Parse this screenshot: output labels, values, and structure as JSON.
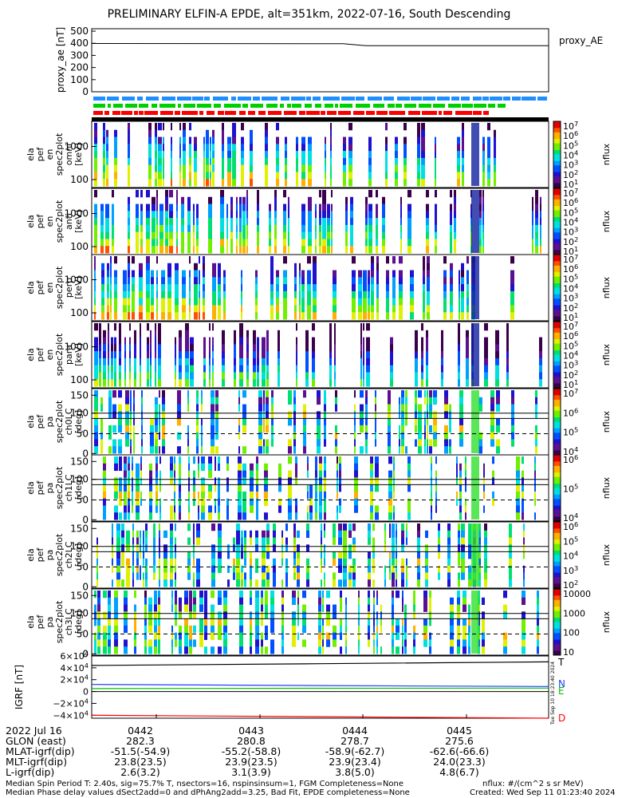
{
  "title": "PRELIMINARY ELFIN-A EPDE, alt=351km, 2022-07-16, South Descending",
  "colors": {
    "bar_blue": "#1f8fff",
    "bar_green": "#00d000",
    "bar_red": "#ff0000",
    "trace_T": "#000000",
    "trace_N": "#1f3fff",
    "trace_E": "#00c000",
    "trace_D": "#ff0000"
  },
  "chart_data": [
    {
      "type": "line",
      "ylabel": "proxy_ae [nT]",
      "yticks": [
        "500",
        "400",
        "300",
        "200",
        "100",
        "0"
      ],
      "ylim": [
        0,
        520
      ],
      "series": [
        {
          "name": "proxy_AE",
          "x": [
            0,
            0.55,
            0.6,
            1
          ],
          "values": [
            398,
            396,
            380,
            380
          ]
        }
      ]
    },
    {
      "type": "bar",
      "note": "three colored indicator bars",
      "rows": [
        "blue",
        "green",
        "red"
      ]
    },
    {
      "type": "heatmap",
      "panels": [
        {
          "ylabel": "ela pef en spec2plot omni [keV]",
          "yscale": "log",
          "yticks": [
            "1000",
            "100"
          ],
          "colorbar_label": "nflux",
          "colorbar_ticks": [
            "10^7",
            "10^6",
            "10^5",
            "10^4",
            "10^3",
            "10^2",
            "10^1"
          ]
        },
        {
          "ylabel": "ela pef en spec2plot anti [keV]",
          "yscale": "log",
          "yticks": [
            "1000",
            "100"
          ],
          "colorbar_label": "nflux",
          "colorbar_ticks": [
            "10^7",
            "10^6",
            "10^5",
            "10^4",
            "10^3",
            "10^2",
            "10^1"
          ]
        },
        {
          "ylabel": "ela pef en spec2plot perp [keV]",
          "yscale": "log",
          "yticks": [
            "1000",
            "100"
          ],
          "colorbar_label": "nflux",
          "colorbar_ticks": [
            "10^7",
            "10^6",
            "10^5",
            "10^4",
            "10^3",
            "10^2",
            "10^1"
          ]
        },
        {
          "ylabel": "ela pef en spec2plot para [keV]",
          "yscale": "log",
          "yticks": [
            "1000",
            "100"
          ],
          "colorbar_label": "nflux",
          "colorbar_ticks": [
            "10^7",
            "10^6",
            "10^5",
            "10^4",
            "10^3",
            "10^2",
            "10^1"
          ]
        },
        {
          "ylabel": "ela pef pa spec2plot ch0LC [deg]",
          "yticks": [
            "150",
            "100",
            "50",
            "0"
          ],
          "colorbar_label": "nflux",
          "colorbar_ticks": [
            "10^7",
            "10^6",
            "10^5",
            "10^4"
          ]
        },
        {
          "ylabel": "ela pef pa spec2plot ch1LC [deg]",
          "yticks": [
            "150",
            "100",
            "50",
            "0"
          ],
          "colorbar_label": "nflux",
          "colorbar_ticks": [
            "10^6",
            "10^5",
            "10^4"
          ]
        },
        {
          "ylabel": "ela pef pa spec2plot ch2LC [deg]",
          "yticks": [
            "150",
            "100",
            "50",
            "0"
          ],
          "colorbar_label": "nflux",
          "colorbar_ticks": [
            "10^6",
            "10^5",
            "10^4",
            "10^3",
            "10^2"
          ]
        },
        {
          "ylabel": "ela pef pa spec2plot ch3LC [deg]",
          "yticks": [
            "150",
            "100",
            "50",
            "0"
          ],
          "colorbar_label": "nflux",
          "colorbar_ticks": [
            "10000",
            "1000",
            "100",
            "10"
          ]
        }
      ]
    },
    {
      "type": "line",
      "ylabel": "IGRF [nT]",
      "yticks": [
        "6×10^4",
        "4×10^4",
        "2×10^4",
        "0",
        "−2×10^4",
        "−4×10^4"
      ],
      "ylim": [
        -45000,
        60000
      ],
      "series": [
        {
          "name": "T",
          "values": [
            44000,
            47000,
            50000
          ]
        },
        {
          "name": "N",
          "values": [
            12000,
            10000,
            8500
          ]
        },
        {
          "name": "E",
          "values": [
            5000,
            5500,
            5800
          ]
        },
        {
          "name": "D",
          "values": [
            -40000,
            -42500,
            -45000
          ]
        }
      ]
    }
  ],
  "colorbar_labels": [
    "10^7",
    "10^6",
    "10^5",
    "10^4",
    "10^3",
    "10^2",
    "10^1",
    "10000",
    "1000",
    "100",
    "10"
  ],
  "panel_labels": {
    "proxy_ae": "proxy_ae [nT]",
    "igrf": "IGRF [nT]",
    "legend_proxy": "proxy_AE",
    "legend_T": "T",
    "legend_N": "N",
    "legend_E": "E",
    "legend_D": "D",
    "nflux": "nflux"
  },
  "orbit_table": {
    "date": "2022 Jul 16",
    "rows": [
      {
        "label": "GLON (east)",
        "values": [
          "282.3",
          "280.8",
          "278.7",
          "275.6"
        ]
      },
      {
        "label": "MLAT-igrf(dip)",
        "values": [
          "-51.5(-54.9)",
          "-55.2(-58.8)",
          "-58.9(-62.7)",
          "-62.6(-66.6)"
        ]
      },
      {
        "label": "MLT-igrf(dip)",
        "values": [
          "23.8(23.5)",
          "23.9(23.5)",
          "23.9(23.4)",
          "24.0(23.3)"
        ]
      },
      {
        "label": "L-igrf(dip)",
        "values": [
          "2.6(3.2)",
          "3.1(3.9)",
          "3.8(5.0)",
          "4.8(6.7)"
        ]
      }
    ],
    "times": [
      "0442",
      "0443",
      "0444",
      "0445"
    ]
  },
  "footer": {
    "line1": "Median Spin Period T: 2.40s, sig=75.7% T, nsectors=16, nspinsinsum=1, FGM Completeness=None",
    "line2": "Median Phase delay values dSect2add=0 and dPhAng2add=3.25, Bad Fit, EPDE completeness=None",
    "units": "nflux: #/(cm^2 s sr MeV)",
    "created": "Created: Wed Sep 11 01:23:40 2024",
    "stamp": "Tue Sep 10 18:23:40 2024"
  }
}
